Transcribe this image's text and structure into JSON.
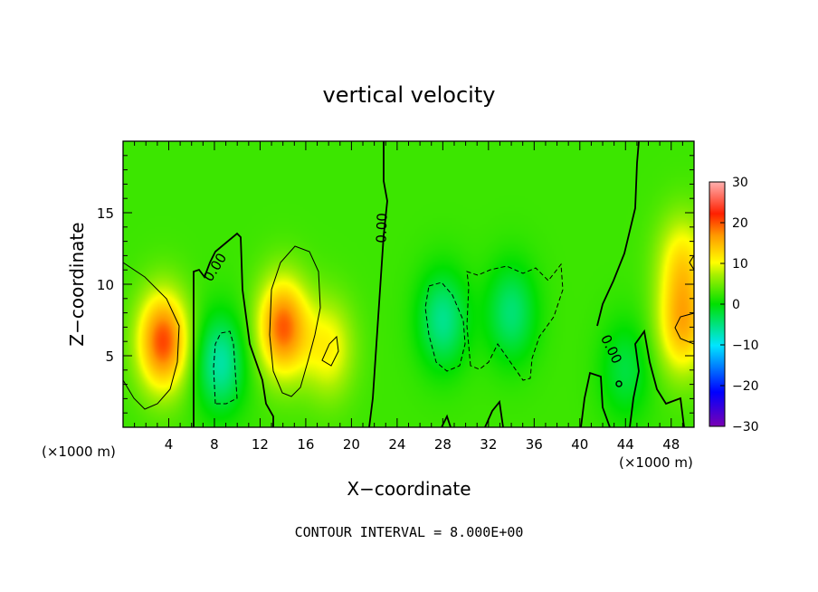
{
  "chart_data": {
    "type": "heatmap",
    "title": "vertical velocity",
    "xlabel": "X−coordinate",
    "ylabel": "Z−coordinate",
    "x_unit_left": "(×1000 m)",
    "x_unit_right": "(×1000 m)",
    "footer": "CONTOUR INTERVAL = 8.000E+00",
    "xlim": [
      0,
      50
    ],
    "ylim": [
      0,
      20
    ],
    "x_ticks": [
      4,
      8,
      12,
      16,
      20,
      24,
      28,
      32,
      36,
      40,
      44,
      48
    ],
    "x_tick_labels": [
      "4",
      "8",
      "12",
      "16",
      "20",
      "24",
      "28",
      "32",
      "36",
      "40",
      "44",
      "48"
    ],
    "y_ticks": [
      5,
      10,
      15
    ],
    "y_tick_labels": [
      "5",
      "10",
      "15"
    ],
    "colorbar": {
      "min": -30,
      "max": 30,
      "ticks": [
        30,
        20,
        10,
        0,
        -10,
        -20,
        -30
      ],
      "tick_labels": [
        "30",
        "20",
        "10",
        "0",
        "−10",
        "−20",
        "−30"
      ]
    },
    "contour_interval": 8,
    "contour_labels": [
      "0.00",
      "0.00",
      "0.00"
    ],
    "features": [
      {
        "x": 3.5,
        "z": 6,
        "value": 18
      },
      {
        "x": 8.5,
        "z": 4.5,
        "value": -9
      },
      {
        "x": 14,
        "z": 7,
        "value": 17
      },
      {
        "x": 18,
        "z": 5.5,
        "value": 8
      },
      {
        "x": 28,
        "z": 7.5,
        "value": -8
      },
      {
        "x": 34,
        "z": 8,
        "value": -7
      },
      {
        "x": 44,
        "z": 4,
        "value": -5
      },
      {
        "x": 49,
        "z": 7,
        "value": 12
      },
      {
        "x": 49,
        "z": 11.5,
        "value": 9
      }
    ]
  }
}
